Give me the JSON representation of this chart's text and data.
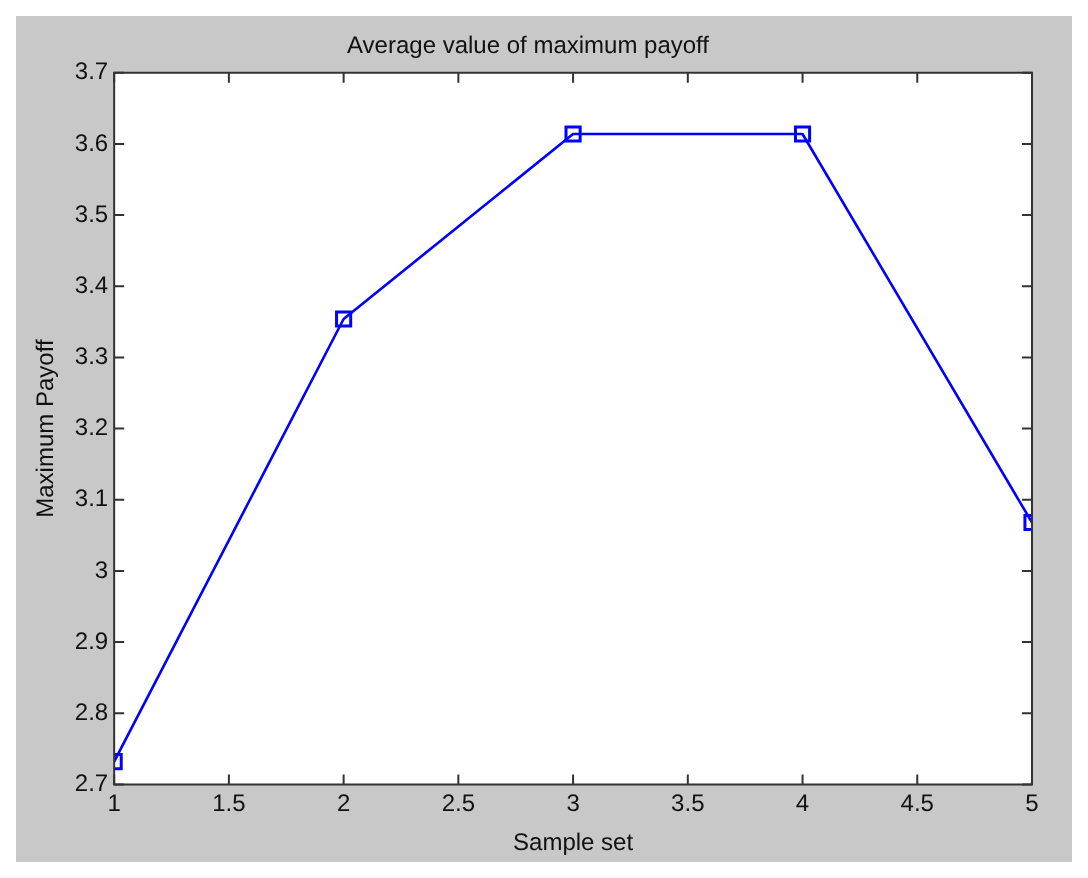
{
  "chart_data": {
    "type": "line",
    "title": "Average value of maximum payoff",
    "xlabel": "Sample set",
    "ylabel": "Maximum Payoff",
    "x": [
      1,
      2,
      3,
      4,
      5
    ],
    "series": [
      {
        "color": "#0000ff",
        "values": [
          2.732,
          3.354,
          3.614,
          3.614,
          3.068
        ]
      }
    ],
    "xlim": [
      1,
      5
    ],
    "xticks": [
      1,
      1.5,
      2,
      2.5,
      3,
      3.5,
      4,
      4.5,
      5
    ],
    "ylim": [
      2.7,
      3.7
    ],
    "yticks": [
      2.7,
      2.8,
      2.9,
      3,
      3.1,
      3.2,
      3.3,
      3.4,
      3.5,
      3.6,
      3.7
    ],
    "marker": "square",
    "line_style": "solid",
    "grid": false,
    "legend": false
  }
}
